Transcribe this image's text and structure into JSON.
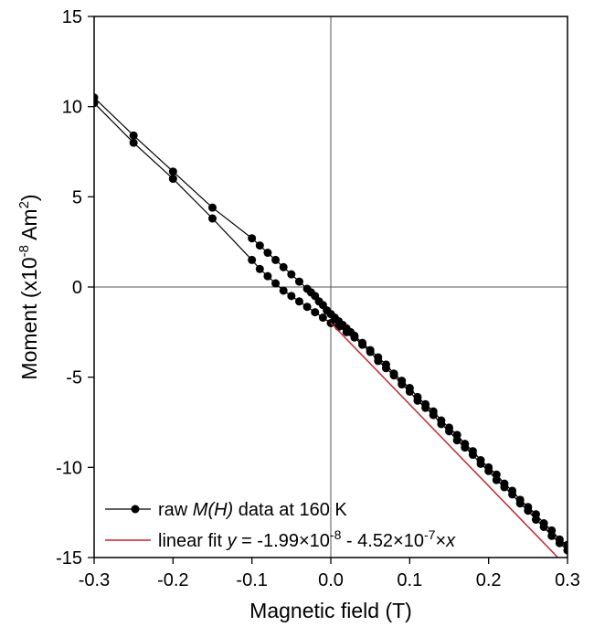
{
  "chart_data": {
    "type": "scatter",
    "xlabel": "Magnetic field (T)",
    "ylabel_parts": [
      "Moment (x10",
      "-8",
      " Am",
      "2",
      ")"
    ],
    "xlim": [
      -0.3,
      0.3
    ],
    "ylim": [
      -15,
      15
    ],
    "x_ticks": [
      "-0.3",
      "-0.2",
      "-0.1",
      "0.0",
      "0.1",
      "0.2",
      "0.3"
    ],
    "y_ticks": [
      "-15",
      "-10",
      "-5",
      "0",
      "5",
      "10",
      "15"
    ],
    "zero_lines": true,
    "legend_position": "bottom-left",
    "colors": {
      "data": "#000000",
      "fit": "#c0272d",
      "zero_line": "#555555"
    },
    "series": [
      {
        "name_parts": [
          "raw ",
          "M(H)",
          " data at 160 K"
        ],
        "style": "line+markers",
        "x": [
          -0.3,
          -0.25,
          -0.2,
          -0.15,
          -0.1,
          -0.09,
          -0.08,
          -0.07,
          -0.06,
          -0.05,
          -0.04,
          -0.03,
          -0.025,
          -0.02,
          -0.015,
          -0.01,
          -0.005,
          0.0,
          0.005,
          0.01,
          0.015,
          0.02,
          0.025,
          0.03,
          0.04,
          0.05,
          0.06,
          0.07,
          0.08,
          0.09,
          0.1,
          0.11,
          0.12,
          0.13,
          0.14,
          0.15,
          0.16,
          0.17,
          0.18,
          0.19,
          0.2,
          0.21,
          0.22,
          0.23,
          0.24,
          0.25,
          0.26,
          0.27,
          0.28,
          0.29,
          0.3
        ],
        "y": [
          10.5,
          8.4,
          6.4,
          4.4,
          2.7,
          2.3,
          1.9,
          1.5,
          1.1,
          0.7,
          0.3,
          -0.1,
          -0.3,
          -0.5,
          -0.8,
          -1.0,
          -1.3,
          -1.5,
          -1.7,
          -1.9,
          -2.1,
          -2.3,
          -2.5,
          -2.7,
          -3.1,
          -3.5,
          -3.9,
          -4.3,
          -4.8,
          -5.2,
          -5.6,
          -6.1,
          -6.5,
          -6.9,
          -7.4,
          -7.8,
          -8.2,
          -8.7,
          -9.1,
          -9.6,
          -10.0,
          -10.4,
          -10.9,
          -11.3,
          -11.8,
          -12.2,
          -12.6,
          -13.1,
          -13.5,
          -14.0,
          -14.3
        ]
      },
      {
        "name_parts": [
          "raw ",
          "M(H)",
          " data at 160 K"
        ],
        "style": "line+markers",
        "legend": false,
        "x": [
          0.3,
          0.29,
          0.28,
          0.27,
          0.26,
          0.25,
          0.24,
          0.23,
          0.22,
          0.21,
          0.2,
          0.19,
          0.18,
          0.17,
          0.16,
          0.15,
          0.14,
          0.13,
          0.12,
          0.11,
          0.1,
          0.09,
          0.08,
          0.07,
          0.06,
          0.05,
          0.04,
          0.03,
          0.02,
          0.01,
          0.0,
          -0.01,
          -0.02,
          -0.03,
          -0.04,
          -0.05,
          -0.06,
          -0.07,
          -0.08,
          -0.09,
          -0.1,
          -0.15,
          -0.2,
          -0.25,
          -0.3
        ],
        "y": [
          -14.6,
          -14.2,
          -13.8,
          -13.3,
          -12.9,
          -12.4,
          -12.0,
          -11.5,
          -11.1,
          -10.7,
          -10.2,
          -9.8,
          -9.3,
          -8.9,
          -8.5,
          -8.0,
          -7.6,
          -7.1,
          -6.7,
          -6.3,
          -5.8,
          -5.4,
          -4.9,
          -4.5,
          -4.1,
          -3.6,
          -3.2,
          -2.8,
          -2.5,
          -2.2,
          -2.0,
          -1.7,
          -1.4,
          -1.1,
          -0.8,
          -0.5,
          -0.2,
          0.2,
          0.6,
          1.0,
          1.5,
          3.8,
          6.0,
          8.0,
          10.2
        ]
      },
      {
        "name_parts": [
          "linear fit ",
          "y",
          " = -1.99×10",
          "-8",
          " - 4.52×10",
          "-7",
          "×",
          "x"
        ],
        "style": "line",
        "x": [
          0.0,
          0.3
        ],
        "y": [
          -1.99,
          -15.55
        ]
      }
    ]
  }
}
